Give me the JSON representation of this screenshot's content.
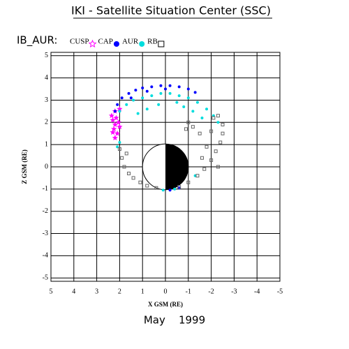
{
  "chart_data": {
    "type": "scatter",
    "title": "IKI - Satellite Situation Center (SSC)",
    "legend_title": "IB_AUR:",
    "x_label": "X GSM (RE)",
    "y_label": "Z GSM (RE)",
    "footer": "May    1999",
    "xlim": [
      5,
      -5
    ],
    "ylim": [
      -5.15,
      5.15
    ],
    "xticks": [
      5,
      4,
      3,
      2,
      1,
      0,
      -1,
      -2,
      -3,
      -4,
      -5
    ],
    "yticks": [
      5,
      4,
      3,
      2,
      1,
      0,
      -1,
      -2,
      -3,
      -4,
      -5
    ],
    "grid": true,
    "series": [
      {
        "name": "CUSP",
        "color": "#ff00ff",
        "marker": "star",
        "x": [
          2.3,
          2.2,
          2.25,
          2.1,
          2.2,
          2.05,
          2.35,
          2.0,
          2.15,
          2.3,
          2.2,
          2.0
        ],
        "y": [
          2.1,
          1.9,
          1.7,
          1.5,
          1.3,
          2.0,
          2.3,
          1.8,
          2.2,
          1.55,
          2.5,
          2.6
        ]
      },
      {
        "name": "CAP",
        "color": "#0000ff",
        "marker": "circle",
        "x": [
          2.1,
          1.9,
          1.6,
          1.3,
          1.0,
          0.6,
          0.2,
          -0.2,
          -0.6,
          -1.0,
          -1.3,
          2.2,
          1.5,
          0.8,
          0.0,
          -0.2,
          -0.6
        ],
        "y": [
          2.8,
          3.1,
          3.3,
          3.45,
          3.55,
          3.6,
          3.65,
          3.65,
          3.6,
          3.5,
          3.35,
          2.5,
          3.1,
          3.4,
          3.5,
          -1.05,
          -0.95
        ]
      },
      {
        "name": "AUR",
        "color": "#00dddd",
        "marker": "circle",
        "x": [
          2.0,
          1.7,
          1.4,
          1.0,
          0.6,
          0.2,
          -0.2,
          -0.6,
          -1.0,
          -1.4,
          -1.8,
          -2.1,
          -2.3,
          0.8,
          0.3,
          -0.5,
          -1.2,
          -1.6,
          2.0,
          2.1,
          0.1,
          -0.4,
          -1.3,
          1.2,
          -0.8
        ],
        "y": [
          2.5,
          2.8,
          3.0,
          3.1,
          3.2,
          3.3,
          3.3,
          3.2,
          3.1,
          2.9,
          2.6,
          2.3,
          2.0,
          2.6,
          2.8,
          2.9,
          2.5,
          2.2,
          1.1,
          0.9,
          -1.05,
          -1.0,
          -0.4,
          2.4,
          2.7
        ]
      },
      {
        "name": "RB",
        "color": "#666666",
        "marker": "square",
        "x": [
          2.0,
          1.9,
          1.8,
          1.6,
          1.4,
          1.1,
          0.8,
          0.4,
          -0.6,
          -1.0,
          -1.4,
          -1.7,
          -2.0,
          -2.2,
          -2.4,
          -2.5,
          -2.5,
          -2.3,
          -1.8,
          -1.5,
          -1.2,
          -2.0,
          -1.6,
          -2.1,
          -1.0,
          1.7,
          -2.3,
          -0.9
        ],
        "y": [
          0.8,
          0.4,
          0.0,
          -0.3,
          -0.5,
          -0.7,
          -0.85,
          -0.95,
          -0.9,
          -0.7,
          -0.4,
          -0.1,
          0.3,
          0.7,
          1.1,
          1.5,
          1.9,
          2.3,
          0.9,
          1.5,
          1.8,
          1.6,
          0.4,
          2.2,
          2.0,
          0.6,
          0.0,
          1.7
        ]
      }
    ]
  }
}
